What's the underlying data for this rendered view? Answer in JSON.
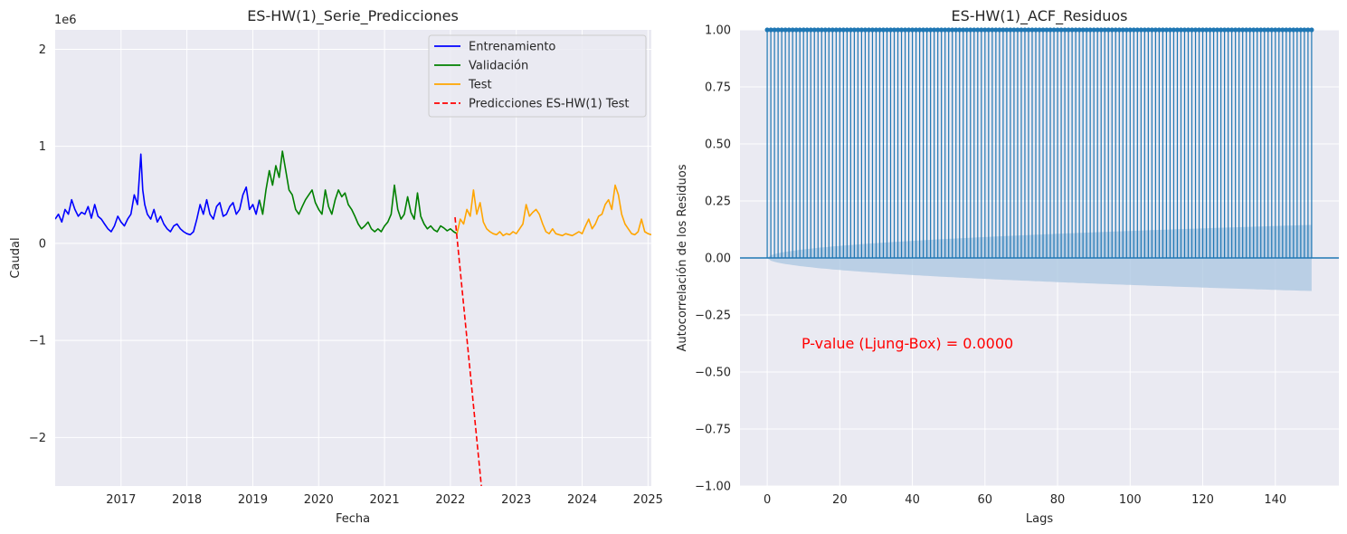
{
  "chart_data": [
    {
      "type": "line",
      "title": "ES-HW(1)_Serie_Predicciones",
      "xlabel": "Fecha",
      "ylabel": "Caudal",
      "y_offset_label": "1e6",
      "xlim": [
        2016.0,
        2025.05
      ],
      "ylim": [
        -2.5,
        2.2
      ],
      "x_ticks": [
        2017,
        2018,
        2019,
        2020,
        2021,
        2022,
        2023,
        2024,
        2025
      ],
      "x_tick_labels": [
        "2017",
        "2018",
        "2019",
        "2020",
        "2021",
        "2022",
        "2023",
        "2024",
        "2025"
      ],
      "y_ticks": [
        -2,
        -1,
        0,
        1,
        2
      ],
      "y_tick_labels": [
        "−2",
        "−1",
        "0",
        "1",
        "2"
      ],
      "grid": true,
      "legend_position": "top-right",
      "series": [
        {
          "name": "Entrenamiento",
          "color": "#0000ff",
          "style": "solid",
          "x": [
            2016.0,
            2016.05,
            2016.1,
            2016.15,
            2016.2,
            2016.25,
            2016.3,
            2016.35,
            2016.4,
            2016.45,
            2016.5,
            2016.55,
            2016.6,
            2016.65,
            2016.7,
            2016.75,
            2016.8,
            2016.85,
            2016.9,
            2016.95,
            2017.0,
            2017.05,
            2017.1,
            2017.15,
            2017.2,
            2017.25,
            2017.3,
            2017.33,
            2017.36,
            2017.4,
            2017.45,
            2017.5,
            2017.55,
            2017.6,
            2017.65,
            2017.7,
            2017.75,
            2017.8,
            2017.85,
            2017.9,
            2017.95,
            2018.0,
            2018.05,
            2018.1,
            2018.15,
            2018.2,
            2018.25,
            2018.3,
            2018.35,
            2018.4,
            2018.45,
            2018.5,
            2018.55,
            2018.6,
            2018.65,
            2018.7,
            2018.75,
            2018.8,
            2018.85,
            2018.9,
            2018.95,
            2019.0,
            2019.05,
            2019.1
          ],
          "values": [
            0.25,
            0.3,
            0.22,
            0.35,
            0.3,
            0.45,
            0.35,
            0.28,
            0.32,
            0.3,
            0.38,
            0.26,
            0.4,
            0.28,
            0.25,
            0.2,
            0.15,
            0.12,
            0.18,
            0.28,
            0.22,
            0.18,
            0.25,
            0.3,
            0.5,
            0.4,
            0.92,
            0.55,
            0.4,
            0.3,
            0.25,
            0.35,
            0.22,
            0.28,
            0.2,
            0.15,
            0.12,
            0.18,
            0.2,
            0.15,
            0.12,
            0.1,
            0.09,
            0.12,
            0.25,
            0.4,
            0.3,
            0.45,
            0.3,
            0.25,
            0.38,
            0.42,
            0.28,
            0.3,
            0.38,
            0.42,
            0.3,
            0.35,
            0.5,
            0.58,
            0.35,
            0.4,
            0.3,
            0.45
          ]
        },
        {
          "name": "Validación",
          "color": "#008000",
          "style": "solid",
          "x": [
            2019.1,
            2019.15,
            2019.2,
            2019.25,
            2019.3,
            2019.35,
            2019.4,
            2019.45,
            2019.5,
            2019.55,
            2019.6,
            2019.65,
            2019.7,
            2019.75,
            2019.8,
            2019.85,
            2019.9,
            2019.95,
            2020.0,
            2020.05,
            2020.1,
            2020.15,
            2020.2,
            2020.25,
            2020.3,
            2020.35,
            2020.4,
            2020.45,
            2020.5,
            2020.55,
            2020.6,
            2020.65,
            2020.7,
            2020.75,
            2020.8,
            2020.85,
            2020.9,
            2020.95,
            2021.0,
            2021.05,
            2021.1,
            2021.15,
            2021.2,
            2021.25,
            2021.3,
            2021.35,
            2021.4,
            2021.45,
            2021.5,
            2021.55,
            2021.6,
            2021.65,
            2021.7,
            2021.75,
            2021.8,
            2021.85,
            2021.9,
            2021.95,
            2022.0,
            2022.05,
            2022.1
          ],
          "values": [
            0.45,
            0.3,
            0.55,
            0.75,
            0.6,
            0.8,
            0.68,
            0.95,
            0.75,
            0.55,
            0.5,
            0.35,
            0.3,
            0.38,
            0.45,
            0.5,
            0.55,
            0.42,
            0.35,
            0.3,
            0.55,
            0.38,
            0.3,
            0.45,
            0.55,
            0.48,
            0.52,
            0.4,
            0.35,
            0.28,
            0.2,
            0.15,
            0.18,
            0.22,
            0.15,
            0.12,
            0.15,
            0.12,
            0.18,
            0.22,
            0.3,
            0.6,
            0.35,
            0.25,
            0.3,
            0.48,
            0.32,
            0.25,
            0.52,
            0.28,
            0.2,
            0.15,
            0.18,
            0.14,
            0.12,
            0.18,
            0.16,
            0.13,
            0.15,
            0.12,
            0.1
          ]
        },
        {
          "name": "Test",
          "color": "#ffa500",
          "style": "solid",
          "x": [
            2022.1,
            2022.15,
            2022.2,
            2022.25,
            2022.3,
            2022.35,
            2022.4,
            2022.45,
            2022.5,
            2022.55,
            2022.6,
            2022.65,
            2022.7,
            2022.75,
            2022.8,
            2022.85,
            2022.9,
            2022.95,
            2023.0,
            2023.05,
            2023.1,
            2023.15,
            2023.2,
            2023.25,
            2023.3,
            2023.35,
            2023.4,
            2023.45,
            2023.5,
            2023.55,
            2023.6,
            2023.65,
            2023.7,
            2023.75,
            2023.8,
            2023.85,
            2023.9,
            2023.95,
            2024.0,
            2024.05,
            2024.1,
            2024.15,
            2024.2,
            2024.25,
            2024.3,
            2024.35,
            2024.4,
            2024.45,
            2024.5,
            2024.55,
            2024.6,
            2024.65,
            2024.7,
            2024.75,
            2024.8,
            2024.85,
            2024.9,
            2024.95,
            2025.0,
            2025.05
          ],
          "values": [
            0.1,
            0.25,
            0.2,
            0.35,
            0.28,
            0.55,
            0.3,
            0.42,
            0.22,
            0.15,
            0.12,
            0.1,
            0.09,
            0.12,
            0.08,
            0.1,
            0.09,
            0.12,
            0.1,
            0.15,
            0.2,
            0.4,
            0.28,
            0.32,
            0.35,
            0.3,
            0.2,
            0.12,
            0.1,
            0.15,
            0.1,
            0.09,
            0.08,
            0.1,
            0.09,
            0.08,
            0.1,
            0.12,
            0.1,
            0.18,
            0.25,
            0.15,
            0.2,
            0.28,
            0.3,
            0.4,
            0.45,
            0.35,
            0.6,
            0.5,
            0.3,
            0.2,
            0.15,
            0.1,
            0.09,
            0.12,
            0.25,
            0.12,
            0.1,
            0.09
          ]
        },
        {
          "name": "Predicciones ES-HW(1) Test",
          "color": "#ff0000",
          "style": "dashed",
          "x": [
            2022.07,
            2022.47
          ],
          "values": [
            0.27,
            -2.5
          ]
        }
      ]
    },
    {
      "type": "bar",
      "title": "ES-HW(1)_ACF_Residuos",
      "xlabel": "Lags",
      "ylabel": "Autocorrelación de los Residuos",
      "xlim": [
        -7.5,
        157.5
      ],
      "ylim": [
        -1.0,
        1.0
      ],
      "x_ticks": [
        0,
        20,
        40,
        60,
        80,
        100,
        120,
        140
      ],
      "x_tick_labels": [
        "0",
        "20",
        "40",
        "60",
        "80",
        "100",
        "120",
        "140"
      ],
      "y_ticks": [
        -1.0,
        -0.75,
        -0.5,
        -0.25,
        0.0,
        0.25,
        0.5,
        0.75,
        1.0
      ],
      "y_tick_labels": [
        "−1.00",
        "−0.75",
        "−0.50",
        "−0.25",
        "0.00",
        "0.25",
        "0.50",
        "0.75",
        "1.00"
      ],
      "grid": true,
      "lags": 150,
      "acf_value": 1.0,
      "confidence_band_final": 0.145,
      "color": "#1f77b4",
      "band_color": "#a9c6e0",
      "annotation": "P-value (Ljung-Box) = 0.0000",
      "annotation_color": "#ff0000"
    }
  ]
}
